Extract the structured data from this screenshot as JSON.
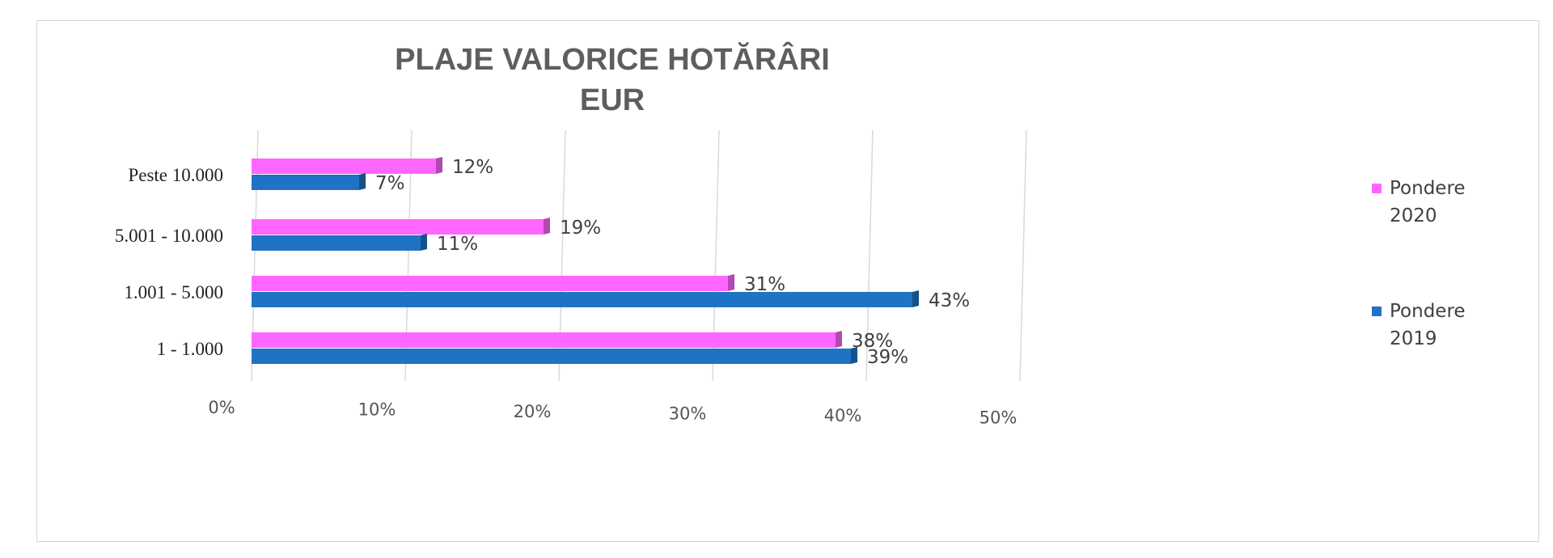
{
  "chart_data": {
    "type": "bar",
    "orientation": "horizontal",
    "title": "PLAJE VALORICE HOTĂRÂRI",
    "subtitle": "EUR",
    "categories": [
      "Peste 10.000",
      "5.001 - 10.000",
      "1.001 - 5.000",
      "1 - 1.000"
    ],
    "series": [
      {
        "name": "Pondere 2020",
        "color": "#ff66ff",
        "values": [
          12,
          19,
          31,
          38
        ],
        "labels": [
          "12%",
          "19%",
          "31%",
          "38%"
        ]
      },
      {
        "name": "Pondere 2019",
        "color": "#1f73c4",
        "values": [
          7,
          11,
          43,
          39
        ],
        "labels": [
          "7%",
          "11%",
          "43%",
          "39%"
        ]
      }
    ],
    "x_ticks": [
      0,
      10,
      20,
      30,
      40,
      50
    ],
    "x_tick_labels": [
      "0%",
      "10%",
      "20%",
      "30%",
      "40%",
      "50%"
    ],
    "xlim": [
      0,
      50
    ],
    "grid": true,
    "legend": {
      "position": "right",
      "entries": [
        {
          "line1": "Pondere",
          "line2": "2020",
          "color": "#ff66ff"
        },
        {
          "line1": "Pondere",
          "line2": "2019",
          "color": "#1f73c4"
        }
      ]
    }
  }
}
